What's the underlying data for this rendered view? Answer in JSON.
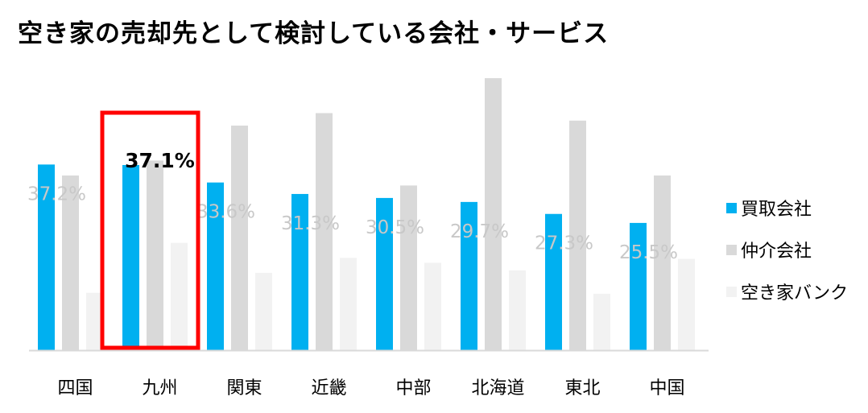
{
  "chart_data": {
    "type": "bar",
    "title": "空き家の売却先として検討している会社・サービス",
    "categories": [
      "四国",
      "九州",
      "関東",
      "近畿",
      "中部",
      "北海道",
      "東北",
      "中国"
    ],
    "series": [
      {
        "name": "買取会社",
        "color": "#00b0f0",
        "values": [
          37.2,
          37.1,
          33.6,
          31.3,
          30.5,
          29.7,
          27.3,
          25.5
        ]
      },
      {
        "name": "仲介会社",
        "color": "#d9d9d9",
        "values": [
          35.0,
          38.0,
          45.0,
          47.5,
          33.0,
          54.5,
          46.0,
          35.0
        ]
      },
      {
        "name": "空き家バンク",
        "color": "#f2f2f2",
        "values": [
          11.5,
          21.5,
          15.5,
          18.5,
          17.5,
          16.0,
          11.3,
          18.3
        ]
      }
    ],
    "data_labels": [
      "37.2%",
      "37.1%",
      "33.6%",
      "31.3%",
      "30.5%",
      "29.7%",
      "27.3%",
      "25.5%"
    ],
    "highlight": {
      "category": "九州",
      "color": "#ff0000"
    },
    "ylim": [
      0,
      55
    ],
    "grid": false,
    "legend_position": "right"
  }
}
